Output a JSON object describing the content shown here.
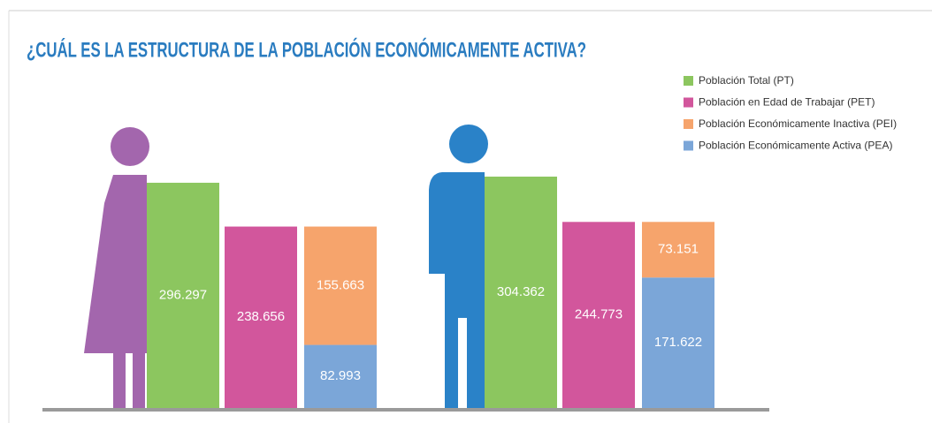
{
  "chart_data": {
    "type": "bar",
    "title": "¿CUÁL ES LA ESTRUCTURA DE LA POBLACIÓN ECONÓMICAMENTE ACTIVA?",
    "categories": [
      null,
      null
    ],
    "series": [
      {
        "name": "Población Total (PT)",
        "color": "#8cc65f",
        "values": [
          296297,
          304362
        ],
        "value_labels": [
          "296.297",
          "304.362"
        ]
      },
      {
        "name": "Población en Edad de Trabajar (PET)",
        "color": "#d2569c",
        "values": [
          238656,
          244773
        ],
        "value_labels": [
          "238.656",
          "244.773"
        ]
      },
      {
        "name": "Población Económicamente Inactiva (PEI)",
        "color": "#f6a46c",
        "values": [
          155663,
          73151
        ],
        "value_labels": [
          "155.663",
          "73.151"
        ]
      },
      {
        "name": "Población Económicamente Activa (PEA)",
        "color": "#7ba6d8",
        "values": [
          82993,
          171622
        ],
        "value_labels": [
          "82.993",
          "171.622"
        ]
      }
    ]
  }
}
